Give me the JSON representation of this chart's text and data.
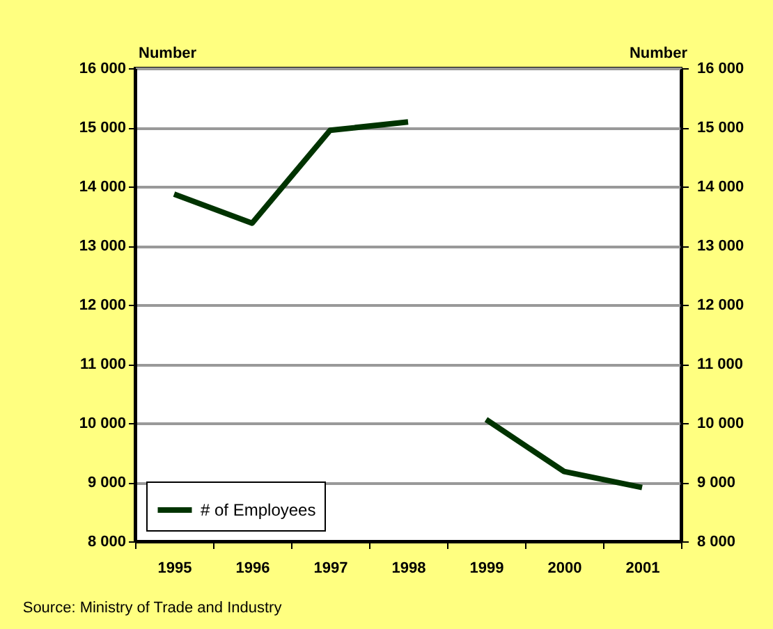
{
  "chart_data": {
    "type": "line",
    "xlabel": null,
    "ylabel": "Number",
    "y2label": "Number",
    "categories": [
      "1995",
      "1996",
      "1997",
      "1998",
      "1999",
      "2000",
      "2001"
    ],
    "series": [
      {
        "name": "# of Employees",
        "color": "#003300",
        "values": [
          13870,
          13380,
          14950,
          15090,
          null,
          null,
          null
        ]
      },
      {
        "color": "#003300",
        "values": [
          null,
          null,
          null,
          null,
          10060,
          9180,
          8910
        ]
      }
    ],
    "ylim": [
      8000,
      16000
    ],
    "yticks": [
      {
        "value": 8000,
        "label": "8 000"
      },
      {
        "value": 9000,
        "label": "9 000"
      },
      {
        "value": 10000,
        "label": "10 000"
      },
      {
        "value": 11000,
        "label": "11 000"
      },
      {
        "value": 12000,
        "label": "12 000"
      },
      {
        "value": 13000,
        "label": "13 000"
      },
      {
        "value": 14000,
        "label": "14 000"
      },
      {
        "value": 15000,
        "label": "15 000"
      },
      {
        "value": 16000,
        "label": "16 000"
      }
    ],
    "y2lim": [
      8000,
      16000
    ],
    "y2ticks": [
      {
        "value": 8000,
        "label": "8 000"
      },
      {
        "value": 9000,
        "label": "9 000"
      },
      {
        "value": 10000,
        "label": "10 000"
      },
      {
        "value": 11000,
        "label": "11 000"
      },
      {
        "value": 12000,
        "label": "12 000"
      },
      {
        "value": 13000,
        "label": "13 000"
      },
      {
        "value": 14000,
        "label": "14 000"
      },
      {
        "value": 15000,
        "label": "15 000"
      },
      {
        "value": 16000,
        "label": "16 000"
      }
    ],
    "grid": "y",
    "legend": "bottom left",
    "line_style": "solid",
    "annotations": [
      "Source: Ministry of Trade and Industry"
    ]
  }
}
